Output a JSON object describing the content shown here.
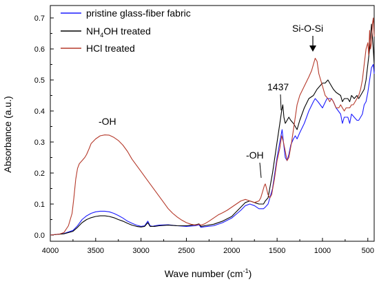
{
  "chart_data": {
    "type": "line",
    "xlabel": "Wave number (cm",
    "xlabel_sup": "-1",
    "xlabel_end": ")",
    "ylabel": "Absorbance (a.u.)",
    "xlim": [
      4000,
      430
    ],
    "ylim": [
      -0.02,
      0.74
    ],
    "x_reversed": true,
    "xticks": [
      4000,
      3500,
      3000,
      2500,
      2000,
      1500,
      1000,
      500
    ],
    "yticks": [
      0.0,
      0.1,
      0.2,
      0.3,
      0.4,
      0.5,
      0.6,
      0.7
    ],
    "ytick_labels": [
      "0.0",
      "0.1",
      "0.2",
      "0.3",
      "0.4",
      "0.5",
      "0.6",
      "0.7"
    ],
    "grid": false,
    "legend_position": "top-left",
    "legend": {
      "pristine": "pristine glass-fiber fabric",
      "nh4oh_pre": "NH",
      "nh4oh_sub": "4",
      "nh4oh_post": "OH treated",
      "hcl": "HCl treated"
    },
    "annotations": {
      "oh_broad": "-OH",
      "oh_small": "-OH",
      "peak_1437": "1437",
      "si_o_si": "Si-O-Si"
    },
    "series": [
      {
        "name": "pristine glass-fiber fabric",
        "color": "#1a1aff",
        "x": [
          4000,
          3850,
          3750,
          3700,
          3650,
          3600,
          3550,
          3500,
          3450,
          3400,
          3350,
          3300,
          3250,
          3200,
          3150,
          3100,
          3050,
          3000,
          2960,
          2925,
          2900,
          2870,
          2850,
          2800,
          2700,
          2600,
          2500,
          2400,
          2360,
          2340,
          2300,
          2200,
          2100,
          2000,
          1900,
          1850,
          1800,
          1750,
          1700,
          1650,
          1630,
          1600,
          1550,
          1500,
          1470,
          1445,
          1430,
          1410,
          1390,
          1370,
          1350,
          1320,
          1300,
          1280,
          1250,
          1200,
          1150,
          1100,
          1080,
          1050,
          1000,
          950,
          900,
          880,
          850,
          800,
          780,
          760,
          720,
          700,
          680,
          650,
          620,
          600,
          580,
          560,
          540,
          520,
          500,
          480,
          460,
          440,
          430
        ],
        "y": [
          0.0,
          0.005,
          0.015,
          0.03,
          0.05,
          0.062,
          0.07,
          0.075,
          0.077,
          0.077,
          0.075,
          0.07,
          0.063,
          0.055,
          0.045,
          0.038,
          0.032,
          0.028,
          0.03,
          0.045,
          0.03,
          0.028,
          0.03,
          0.032,
          0.033,
          0.03,
          0.028,
          0.03,
          0.033,
          0.025,
          0.027,
          0.03,
          0.04,
          0.055,
          0.08,
          0.095,
          0.1,
          0.095,
          0.085,
          0.085,
          0.09,
          0.1,
          0.15,
          0.25,
          0.3,
          0.34,
          0.3,
          0.25,
          0.24,
          0.26,
          0.29,
          0.31,
          0.32,
          0.31,
          0.33,
          0.36,
          0.4,
          0.43,
          0.44,
          0.43,
          0.41,
          0.44,
          0.44,
          0.43,
          0.41,
          0.39,
          0.36,
          0.38,
          0.38,
          0.36,
          0.39,
          0.38,
          0.37,
          0.37,
          0.38,
          0.39,
          0.42,
          0.43,
          0.46,
          0.5,
          0.54,
          0.55,
          0.52
        ]
      },
      {
        "name": "NH4OH treated",
        "color": "#000000",
        "x": [
          4000,
          3850,
          3750,
          3700,
          3650,
          3600,
          3550,
          3500,
          3450,
          3400,
          3350,
          3300,
          3250,
          3200,
          3150,
          3100,
          3050,
          3000,
          2960,
          2925,
          2900,
          2850,
          2800,
          2700,
          2600,
          2500,
          2400,
          2360,
          2340,
          2300,
          2200,
          2100,
          2000,
          1900,
          1850,
          1800,
          1750,
          1700,
          1650,
          1630,
          1600,
          1550,
          1500,
          1470,
          1450,
          1437,
          1425,
          1410,
          1390,
          1370,
          1350,
          1320,
          1300,
          1280,
          1250,
          1200,
          1150,
          1100,
          1060,
          1030,
          1000,
          970,
          940,
          920,
          900,
          880,
          850,
          800,
          780,
          760,
          720,
          700,
          680,
          650,
          620,
          600,
          580,
          560,
          540,
          520,
          500,
          480,
          460,
          440,
          430
        ],
        "y": [
          0.0,
          0.004,
          0.012,
          0.025,
          0.04,
          0.05,
          0.056,
          0.06,
          0.062,
          0.062,
          0.06,
          0.056,
          0.05,
          0.045,
          0.038,
          0.032,
          0.028,
          0.026,
          0.028,
          0.04,
          0.028,
          0.028,
          0.03,
          0.032,
          0.03,
          0.03,
          0.033,
          0.036,
          0.028,
          0.03,
          0.035,
          0.045,
          0.06,
          0.09,
          0.105,
          0.11,
          0.105,
          0.1,
          0.1,
          0.11,
          0.12,
          0.2,
          0.3,
          0.36,
          0.4,
          0.42,
          0.38,
          0.36,
          0.37,
          0.38,
          0.37,
          0.36,
          0.35,
          0.34,
          0.37,
          0.41,
          0.44,
          0.45,
          0.47,
          0.48,
          0.49,
          0.49,
          0.5,
          0.49,
          0.48,
          0.47,
          0.46,
          0.45,
          0.43,
          0.44,
          0.44,
          0.43,
          0.45,
          0.44,
          0.45,
          0.44,
          0.45,
          0.46,
          0.47,
          0.5,
          0.55,
          0.6,
          0.68,
          0.6,
          0.55
        ]
      },
      {
        "name": "HCl treated",
        "color": "#b5392a",
        "x": [
          4000,
          3900,
          3850,
          3800,
          3760,
          3740,
          3720,
          3700,
          3680,
          3650,
          3620,
          3600,
          3570,
          3550,
          3500,
          3450,
          3400,
          3350,
          3300,
          3250,
          3200,
          3150,
          3100,
          3050,
          3000,
          2950,
          2900,
          2850,
          2800,
          2750,
          2700,
          2650,
          2600,
          2550,
          2500,
          2450,
          2400,
          2360,
          2340,
          2300,
          2250,
          2200,
          2150,
          2100,
          2050,
          2000,
          1950,
          1900,
          1850,
          1800,
          1750,
          1700,
          1680,
          1660,
          1640,
          1630,
          1620,
          1600,
          1580,
          1560,
          1530,
          1500,
          1470,
          1450,
          1430,
          1410,
          1390,
          1370,
          1340,
          1300,
          1280,
          1250,
          1200,
          1150,
          1120,
          1100,
          1080,
          1060,
          1040,
          1000,
          970,
          940,
          920,
          900,
          880,
          850,
          820,
          800,
          780,
          760,
          740,
          720,
          700,
          680,
          660,
          640,
          620,
          600,
          580,
          560,
          540,
          520,
          500,
          490,
          480,
          470,
          460,
          450,
          440,
          430
        ],
        "y": [
          0.0,
          0.003,
          0.008,
          0.03,
          0.07,
          0.12,
          0.18,
          0.215,
          0.23,
          0.24,
          0.25,
          0.26,
          0.28,
          0.295,
          0.31,
          0.32,
          0.323,
          0.322,
          0.315,
          0.305,
          0.29,
          0.27,
          0.245,
          0.225,
          0.205,
          0.185,
          0.165,
          0.145,
          0.125,
          0.105,
          0.085,
          0.07,
          0.058,
          0.048,
          0.04,
          0.035,
          0.032,
          0.035,
          0.032,
          0.036,
          0.045,
          0.055,
          0.065,
          0.072,
          0.08,
          0.09,
          0.1,
          0.11,
          0.115,
          0.11,
          0.105,
          0.11,
          0.12,
          0.14,
          0.16,
          0.165,
          0.155,
          0.13,
          0.12,
          0.13,
          0.18,
          0.24,
          0.28,
          0.32,
          0.3,
          0.27,
          0.24,
          0.25,
          0.3,
          0.38,
          0.42,
          0.45,
          0.48,
          0.51,
          0.53,
          0.55,
          0.57,
          0.56,
          0.52,
          0.48,
          0.45,
          0.44,
          0.43,
          0.44,
          0.43,
          0.41,
          0.41,
          0.42,
          0.41,
          0.4,
          0.41,
          0.41,
          0.41,
          0.42,
          0.42,
          0.43,
          0.44,
          0.45,
          0.47,
          0.5,
          0.55,
          0.6,
          0.62,
          0.58,
          0.66,
          0.6,
          0.62,
          0.68,
          0.7,
          0.64
        ]
      }
    ]
  }
}
